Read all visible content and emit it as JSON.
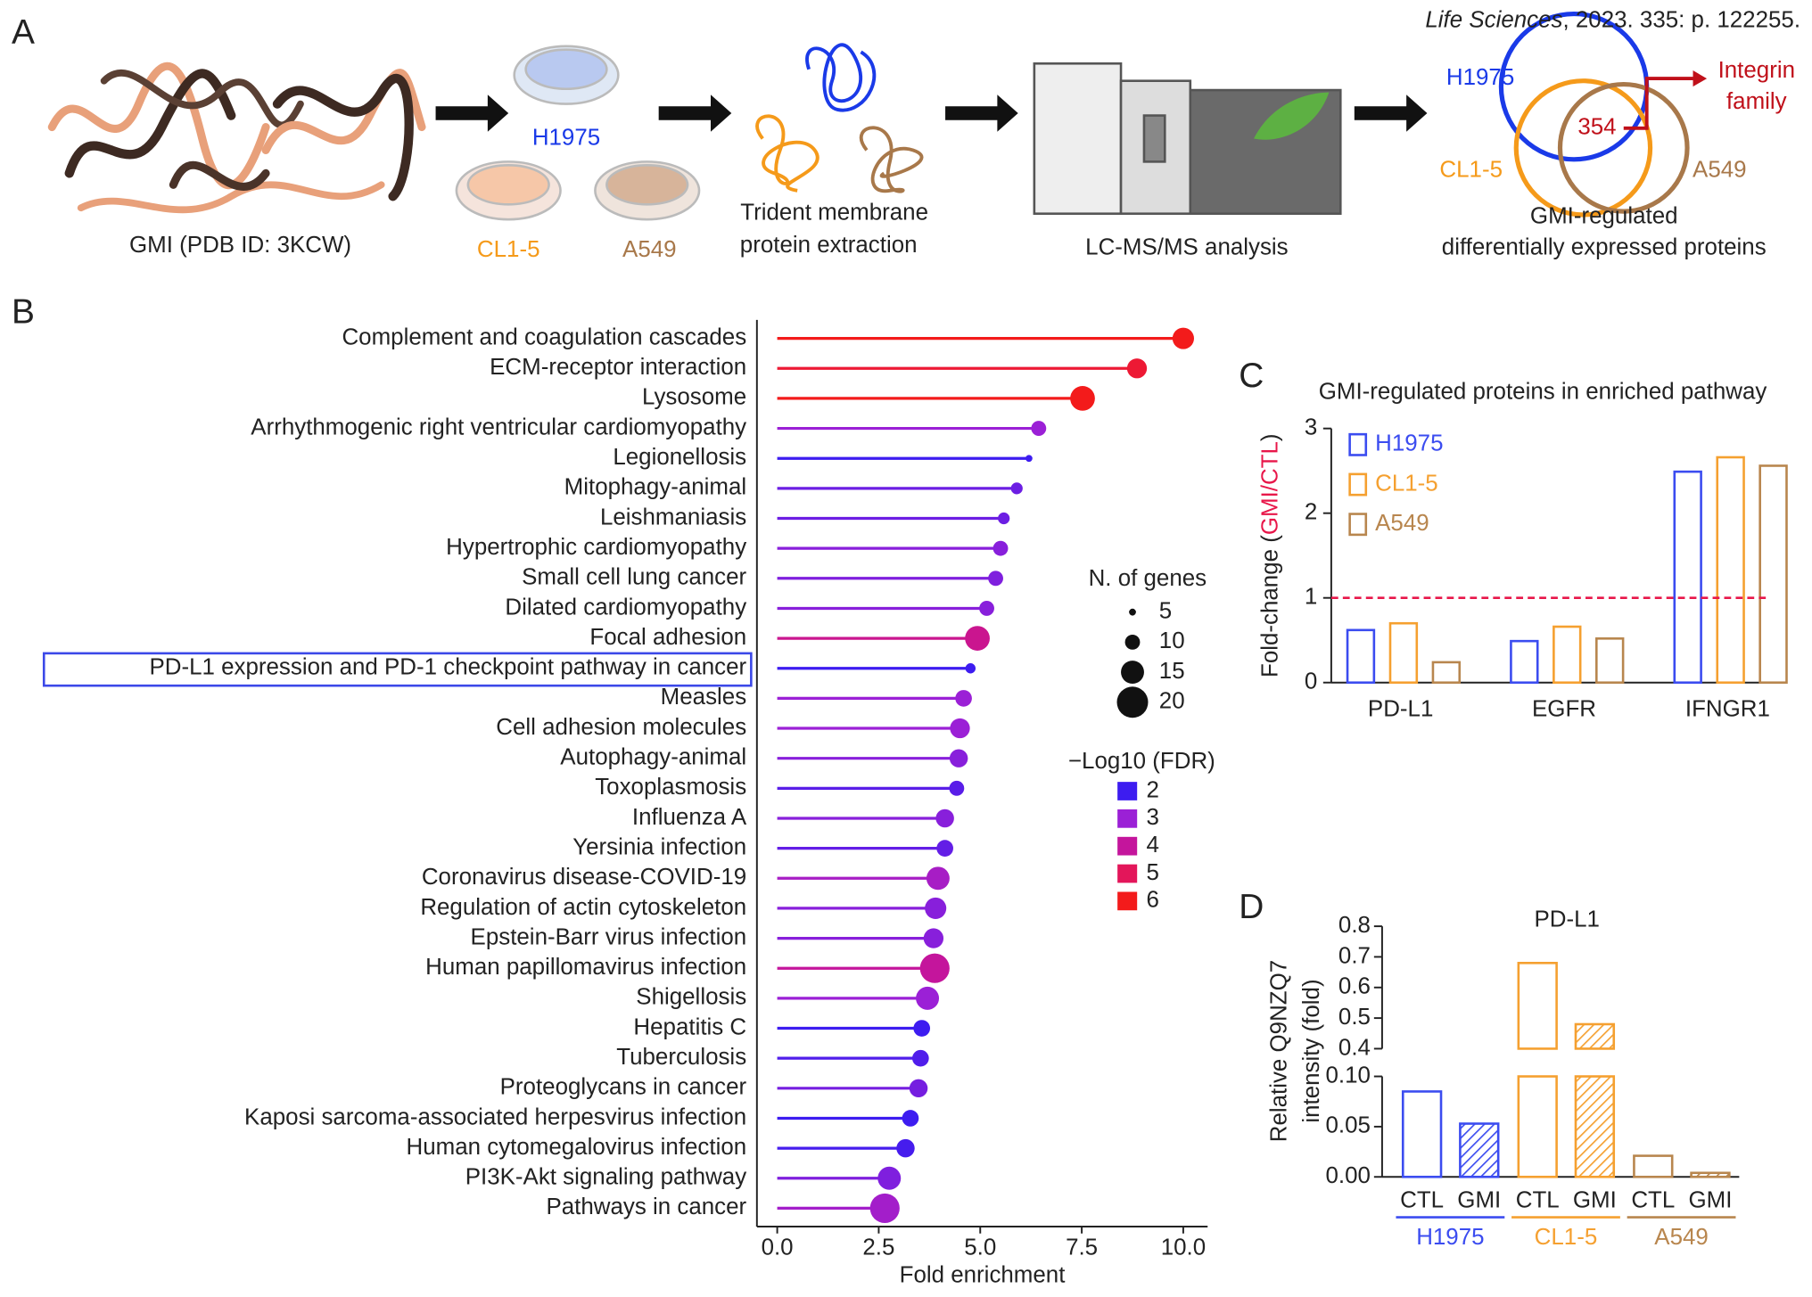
{
  "panel_labels": [
    "A",
    "B",
    "C",
    "D"
  ],
  "workflow": {
    "protein_label": "GMI (PDB ID: 3KCW)",
    "cell_lines": [
      "H1975",
      "CL1-5",
      "A549"
    ],
    "extraction": [
      "Trident membrane",
      "protein extraction"
    ],
    "analysis": "LC-MS/MS analysis",
    "citation_journal": "Life Sciences",
    "citation_rest": ", 2023. 335: p. 122255.",
    "venn_sets": [
      "H1975",
      "CL1-5",
      "A549"
    ],
    "venn_overlap": "354",
    "venn_callout": [
      "Integrin",
      "family"
    ],
    "venn_caption": [
      "GMI-regulated",
      "differentially expressed proteins"
    ]
  },
  "chart_data": [
    {
      "type": "lollipop",
      "categories": [
        "Complement and coagulation cascades",
        "ECM-receptor interaction",
        "Lysosome",
        "Arrhythmogenic right ventricular cardiomyopathy",
        "Legionellosis",
        "Mitophagy-animal",
        "Leishmaniasis",
        "Hypertrophic cardiomyopathy",
        "Small cell lung cancer",
        "Dilated cardiomyopathy",
        "Focal adhesion",
        "PD-L1 expression and PD-1 checkpoint pathway in cancer",
        "Measles",
        "Cell adhesion molecules",
        "Autophagy-animal",
        "Toxoplasmosis",
        "Influenza A",
        "Yersinia infection",
        "Coronavirus disease-COVID-19",
        "Regulation of actin cytoskeleton",
        "Epstein-Barr virus infection",
        "Human papillomavirus infection",
        "Shigellosis",
        "Hepatitis C",
        "Tuberculosis",
        "Proteoglycans in cancer",
        "Kaposi sarcoma-associated herpesvirus infection",
        "Human cytomegalovirus infection",
        "PI3K-Akt signaling pathway",
        "Pathways in cancer"
      ],
      "values": [
        10.0,
        8.86,
        7.52,
        6.44,
        6.2,
        5.9,
        5.58,
        5.5,
        5.38,
        5.16,
        4.93,
        4.76,
        4.59,
        4.5,
        4.47,
        4.42,
        4.13,
        4.13,
        3.96,
        3.9,
        3.85,
        3.88,
        3.7,
        3.56,
        3.53,
        3.48,
        3.28,
        3.16,
        2.76,
        2.65
      ],
      "genes": [
        14,
        13,
        16,
        10,
        5,
        8,
        8,
        10,
        10,
        10,
        16,
        7,
        11,
        13,
        12,
        10,
        12,
        11,
        15,
        14,
        13,
        19,
        15,
        11,
        11,
        12,
        11,
        12,
        15,
        19
      ],
      "fdr": [
        6,
        5.6,
        6,
        3,
        2,
        2.5,
        2.5,
        2.8,
        2.7,
        2.8,
        4.2,
        2,
        3,
        3,
        2.8,
        2.3,
        2.8,
        2.4,
        3.3,
        2.8,
        2.8,
        4,
        3,
        2,
        2.2,
        2.6,
        2,
        2.1,
        2.7,
        3.2
      ],
      "xlabel": "Fold enrichment",
      "xlim": [
        -0.5,
        10.6
      ],
      "xticks": [
        {
          "value": 0,
          "label": "0.0"
        },
        2.5,
        {
          "value": 5,
          "label": "5.0"
        },
        7.5,
        {
          "value": 10,
          "label": "10.0"
        }
      ],
      "size_legend_title": "N. of genes",
      "size_legend": [
        5,
        10,
        15,
        20
      ],
      "color_legend_title": "−Log10 (FDR)",
      "color_legend": [
        {
          "value": 2,
          "color": "#3d1cf0"
        },
        {
          "value": 3,
          "color": "#9b20d6"
        },
        {
          "value": 4,
          "color": "#c4159c"
        },
        {
          "value": 5,
          "color": "#e3165a"
        },
        {
          "value": 6,
          "color": "#f31b1b"
        }
      ],
      "highlight_category": 11,
      "highlight_color": "#3b48e8"
    },
    {
      "type": "bar",
      "title": "GMI-regulated proteins in enriched pathway",
      "ylabel_parts": [
        "Fold-change (",
        "GMI/CTL",
        ")"
      ],
      "ylabel_colors": [
        "#222222",
        "#e8174a",
        "#222222"
      ],
      "categories": [
        "PD-L1",
        "EGFR",
        "IFNGR1"
      ],
      "series": [
        {
          "name": "H1975",
          "color": "#3b4cf0",
          "values": [
            0.62,
            0.49,
            2.49
          ]
        },
        {
          "name": "CL1-5",
          "color": "#f5a030",
          "values": [
            0.7,
            0.66,
            2.66
          ]
        },
        {
          "name": "A549",
          "color": "#b8864e",
          "values": [
            0.24,
            0.52,
            2.56
          ]
        }
      ],
      "ylim": [
        0,
        3
      ],
      "yticks": [
        0,
        1,
        2,
        3
      ],
      "reference_line": 1,
      "reference_color": "#e8174a",
      "legend": "top-left"
    },
    {
      "type": "bar",
      "title": "PD-L1",
      "ylabel": [
        "Relative Q9NZQ7",
        "intensity (fold)"
      ],
      "categories": [
        "CTL",
        "GMI"
      ],
      "hatched": [
        false,
        true
      ],
      "series": [
        {
          "name": "H1975",
          "color": "#3b4cf0",
          "values": [
            0.085,
            0.053
          ]
        },
        {
          "name": "CL1-5",
          "color": "#f5a030",
          "values": [
            0.68,
            0.48
          ]
        },
        {
          "name": "A549",
          "color": "#b8864e",
          "values": [
            0.021,
            0.004
          ]
        }
      ],
      "ysegments": [
        {
          "ylim": [
            0,
            0.1
          ],
          "yticks": [
            {
              "value": 0,
              "label": "0.00"
            },
            0.05,
            {
              "value": 0.1,
              "label": "0.10"
            }
          ]
        },
        {
          "ylim": [
            0.4,
            0.8
          ],
          "yticks": [
            0.4,
            0.5,
            0.6,
            0.7,
            0.8
          ]
        }
      ]
    }
  ]
}
